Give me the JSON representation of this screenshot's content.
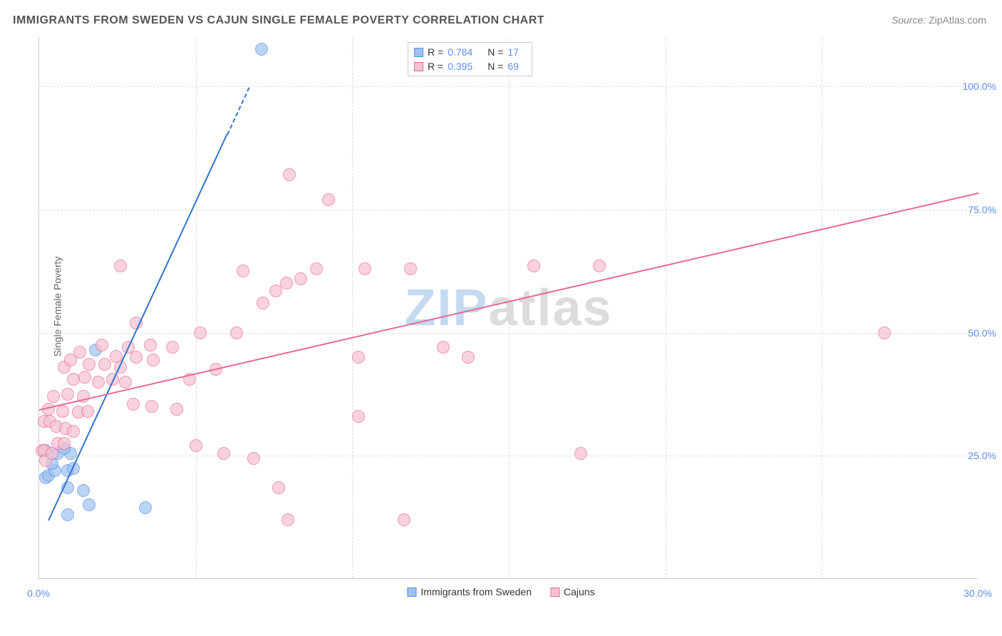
{
  "title": "IMMIGRANTS FROM SWEDEN VS CAJUN SINGLE FEMALE POVERTY CORRELATION CHART",
  "source_label": "Source:",
  "source_value": "ZipAtlas.com",
  "ylabel": "Single Female Poverty",
  "watermark_a": "ZIP",
  "watermark_b": "atlas",
  "chart": {
    "type": "scatter",
    "xlim": [
      0,
      30
    ],
    "ylim": [
      0,
      110
    ],
    "x_ticks": [
      {
        "v": 0,
        "label": "0.0%",
        "color": "#5b8def"
      },
      {
        "v": 30,
        "label": "30.0%",
        "color": "#5b8def"
      }
    ],
    "x_grid": [
      5,
      10,
      15,
      20,
      25
    ],
    "y_ticks": [
      {
        "v": 25,
        "label": "25.0%",
        "color": "#5b8def"
      },
      {
        "v": 50,
        "label": "50.0%",
        "color": "#5b8def"
      },
      {
        "v": 75,
        "label": "75.0%",
        "color": "#5b8def"
      },
      {
        "v": 100,
        "label": "100.0%",
        "color": "#5b8def"
      }
    ],
    "background_color": "#ffffff",
    "grid_color": "#dddddd",
    "axis_color": "#cccccc",
    "marker_radius": 9,
    "marker_border_width": 1.5,
    "marker_fill_opacity": 0.25,
    "series": [
      {
        "key": "sweden",
        "label": "Immigrants from Sweden",
        "fill": "#9dc3ee",
        "stroke": "#5b8def",
        "R": "0.784",
        "N": "17",
        "trend": {
          "x1": 0.3,
          "y1": 12,
          "x2": 6.7,
          "y2": 100,
          "color": "#2f74d0",
          "dash_after_x": 6.0
        },
        "points": [
          [
            0.2,
            20.5
          ],
          [
            0.3,
            21.0
          ],
          [
            0.5,
            22.0
          ],
          [
            0.4,
            23.5
          ],
          [
            0.9,
            22.0
          ],
          [
            1.1,
            22.5
          ],
          [
            0.6,
            25.5
          ],
          [
            1.0,
            25.5
          ],
          [
            0.8,
            26.5
          ],
          [
            0.2,
            26.0
          ],
          [
            0.9,
            18.5
          ],
          [
            1.4,
            18.0
          ],
          [
            1.6,
            15.0
          ],
          [
            0.9,
            13.0
          ],
          [
            3.4,
            14.5
          ],
          [
            1.8,
            46.5
          ],
          [
            7.1,
            107.5
          ]
        ]
      },
      {
        "key": "cajun",
        "label": "Cajuns",
        "fill": "#f6c1d1",
        "stroke": "#e86a92",
        "R": "0.395",
        "N": "69",
        "trend": {
          "x1": 0,
          "y1": 34.5,
          "x2": 30,
          "y2": 78.5,
          "color": "#e86a92"
        },
        "points": [
          [
            0.1,
            26.0
          ],
          [
            0.15,
            26.0
          ],
          [
            0.2,
            24.0
          ],
          [
            0.4,
            25.5
          ],
          [
            0.6,
            27.5
          ],
          [
            0.8,
            27.5
          ],
          [
            0.15,
            32.0
          ],
          [
            0.35,
            32.0
          ],
          [
            0.55,
            31.0
          ],
          [
            0.85,
            30.5
          ],
          [
            1.1,
            30.0
          ],
          [
            0.3,
            34.5
          ],
          [
            0.75,
            34.0
          ],
          [
            1.25,
            33.8
          ],
          [
            1.55,
            34.0
          ],
          [
            0.45,
            37.0
          ],
          [
            0.9,
            37.5
          ],
          [
            1.4,
            37.0
          ],
          [
            1.1,
            40.5
          ],
          [
            1.45,
            41.0
          ],
          [
            1.9,
            40.0
          ],
          [
            2.35,
            40.5
          ],
          [
            2.75,
            40.0
          ],
          [
            1.6,
            43.5
          ],
          [
            2.1,
            43.5
          ],
          [
            2.6,
            43.0
          ],
          [
            0.8,
            43.0
          ],
          [
            1.0,
            44.5
          ],
          [
            1.3,
            46.0
          ],
          [
            2.45,
            45.2
          ],
          [
            3.1,
            45.0
          ],
          [
            3.65,
            44.5
          ],
          [
            2.0,
            47.5
          ],
          [
            2.85,
            47.0
          ],
          [
            3.55,
            47.5
          ],
          [
            4.25,
            47.0
          ],
          [
            3.1,
            52.0
          ],
          [
            5.15,
            50.0
          ],
          [
            6.3,
            50.0
          ],
          [
            3.0,
            35.5
          ],
          [
            3.6,
            35.0
          ],
          [
            4.4,
            34.5
          ],
          [
            4.8,
            40.5
          ],
          [
            5.65,
            42.5
          ],
          [
            7.15,
            56.0
          ],
          [
            7.55,
            58.5
          ],
          [
            7.9,
            60.0
          ],
          [
            8.35,
            61.0
          ],
          [
            6.5,
            62.5
          ],
          [
            8.85,
            63.0
          ],
          [
            10.4,
            63.0
          ],
          [
            9.25,
            77.0
          ],
          [
            8.0,
            82.0
          ],
          [
            10.2,
            45.0
          ],
          [
            10.2,
            33.0
          ],
          [
            13.7,
            45.0
          ],
          [
            15.8,
            63.5
          ],
          [
            17.9,
            63.5
          ],
          [
            27.0,
            50.0
          ],
          [
            11.85,
            63.0
          ],
          [
            12.9,
            47.0
          ],
          [
            5.0,
            27.0
          ],
          [
            5.9,
            25.5
          ],
          [
            6.85,
            24.5
          ],
          [
            7.65,
            18.5
          ],
          [
            7.95,
            12.0
          ],
          [
            11.65,
            12.0
          ],
          [
            2.6,
            63.5
          ],
          [
            17.3,
            25.5
          ]
        ]
      }
    ]
  }
}
